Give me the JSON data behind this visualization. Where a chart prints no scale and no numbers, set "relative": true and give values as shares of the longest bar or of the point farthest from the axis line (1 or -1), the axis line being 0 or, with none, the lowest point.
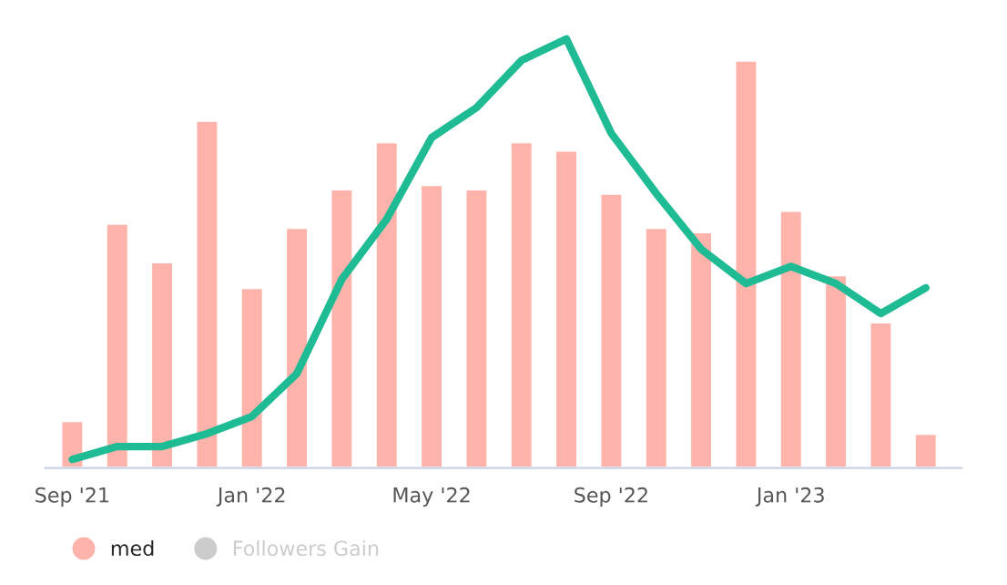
{
  "chart_data": {
    "type": "bar",
    "relative": true,
    "legend": "bottom left",
    "categories": [
      "Sep '21",
      null,
      null,
      null,
      "Jan '22",
      null,
      null,
      null,
      "May '22",
      null,
      null,
      null,
      "Sep '22",
      null,
      null,
      null,
      "Jan '23",
      null,
      null,
      null
    ],
    "series": [
      {
        "name": "med",
        "color": "#ffb3ab",
        "values": [
          0.11,
          0.57,
          0.48,
          0.81,
          0.42,
          0.56,
          0.65,
          0.76,
          0.66,
          0.65,
          0.76,
          0.74,
          0.64,
          0.56,
          0.55,
          0.95,
          0.6,
          0.45,
          0.34,
          0.08
        ]
      },
      {
        "type": "line",
        "color": "#1fbb94",
        "values": [
          0.02,
          0.05,
          0.05,
          0.08,
          0.12,
          0.22,
          0.44,
          0.58,
          0.77,
          0.84,
          0.95,
          1,
          0.78,
          0.64,
          0.51,
          0.43,
          0.47,
          0.43,
          0.36,
          0.42
        ]
      },
      {
        "name": "Followers Gain",
        "type": "line",
        "color": "#cccccc",
        "values": [
          null,
          null,
          null,
          null,
          null,
          null,
          null,
          null,
          null,
          null,
          null,
          null,
          null,
          null,
          null,
          null,
          null,
          null,
          null,
          null
        ]
      }
    ]
  }
}
